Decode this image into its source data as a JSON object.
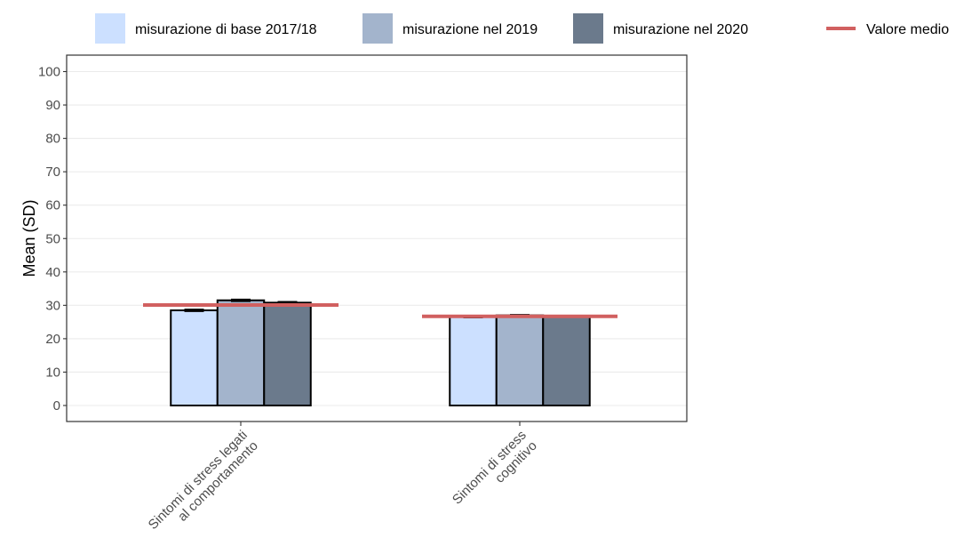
{
  "chart_data": {
    "type": "bar",
    "title": "",
    "xlabel": "",
    "ylabel": "Mean (SD)",
    "ylim": [
      -6,
      104
    ],
    "yticks": [
      0,
      10,
      20,
      30,
      40,
      50,
      60,
      70,
      80,
      90,
      100
    ],
    "grid": true,
    "legend_position": "top",
    "categories": [
      [
        "Sintomi di stress legati",
        "al comportamento"
      ],
      [
        "Sintomi di stress",
        "cognitivo"
      ]
    ],
    "series": [
      {
        "name": "misurazione di base 2017/18",
        "color": "#cce0ff",
        "values": [
          28.5,
          26.5
        ],
        "errors": [
          0.3,
          0.2
        ]
      },
      {
        "name": "misurazione nel 2019",
        "color": "#a3b4cc",
        "values": [
          31.5,
          27.0
        ],
        "errors": [
          0.3,
          0.2
        ]
      },
      {
        "name": "misurazione nel 2020",
        "color": "#6b7a8c",
        "values": [
          30.8,
          26.7
        ],
        "errors": [
          0.3,
          0.2
        ]
      }
    ],
    "mean_line": {
      "name": "Valore medio",
      "color": "#d16060",
      "values": [
        30.1,
        26.7
      ]
    }
  }
}
